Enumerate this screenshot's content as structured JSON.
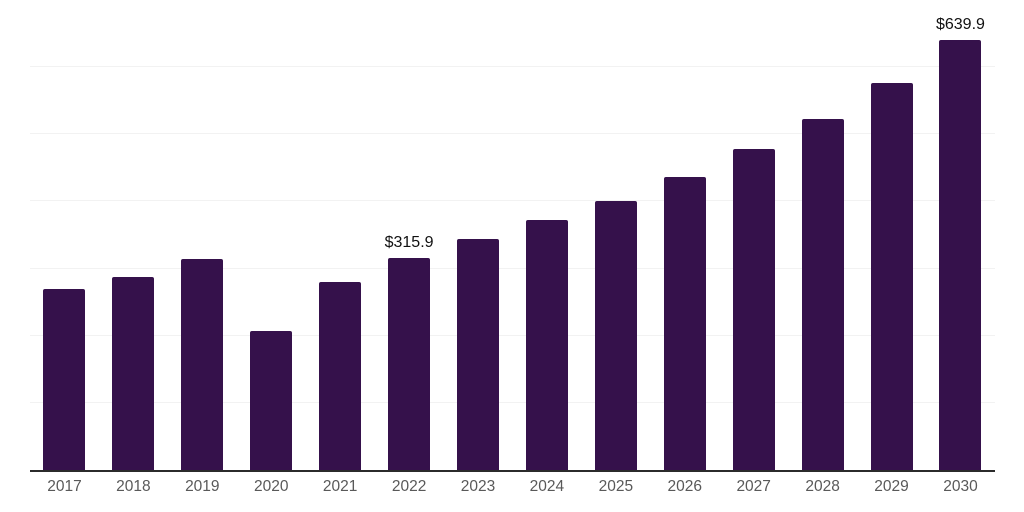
{
  "chart_data": {
    "type": "bar",
    "title": "",
    "xlabel": "",
    "ylabel": "",
    "categories": [
      "2017",
      "2018",
      "2019",
      "2020",
      "2021",
      "2022",
      "2023",
      "2024",
      "2025",
      "2026",
      "2027",
      "2028",
      "2029",
      "2030"
    ],
    "values": [
      269,
      288,
      314,
      207,
      280,
      315.9,
      344,
      372,
      401,
      436,
      478,
      523,
      577,
      639.9
    ],
    "data_labels": [
      "",
      "",
      "",
      "",
      "",
      "$315.9",
      "",
      "",
      "",
      "",
      "",
      "",
      "",
      "$639.9"
    ],
    "ylim": [
      0,
      700
    ],
    "gridline_values": [
      100,
      200,
      300,
      400,
      500,
      600,
      700
    ],
    "grid": "horizontal",
    "legend_position": "none",
    "colors": {
      "bar": "#35114B",
      "axis_line": "#2b2b2b",
      "tick_label": "#595959",
      "data_label": "#111111",
      "gridline": "#f2f2f2",
      "background": "#ffffff"
    }
  }
}
